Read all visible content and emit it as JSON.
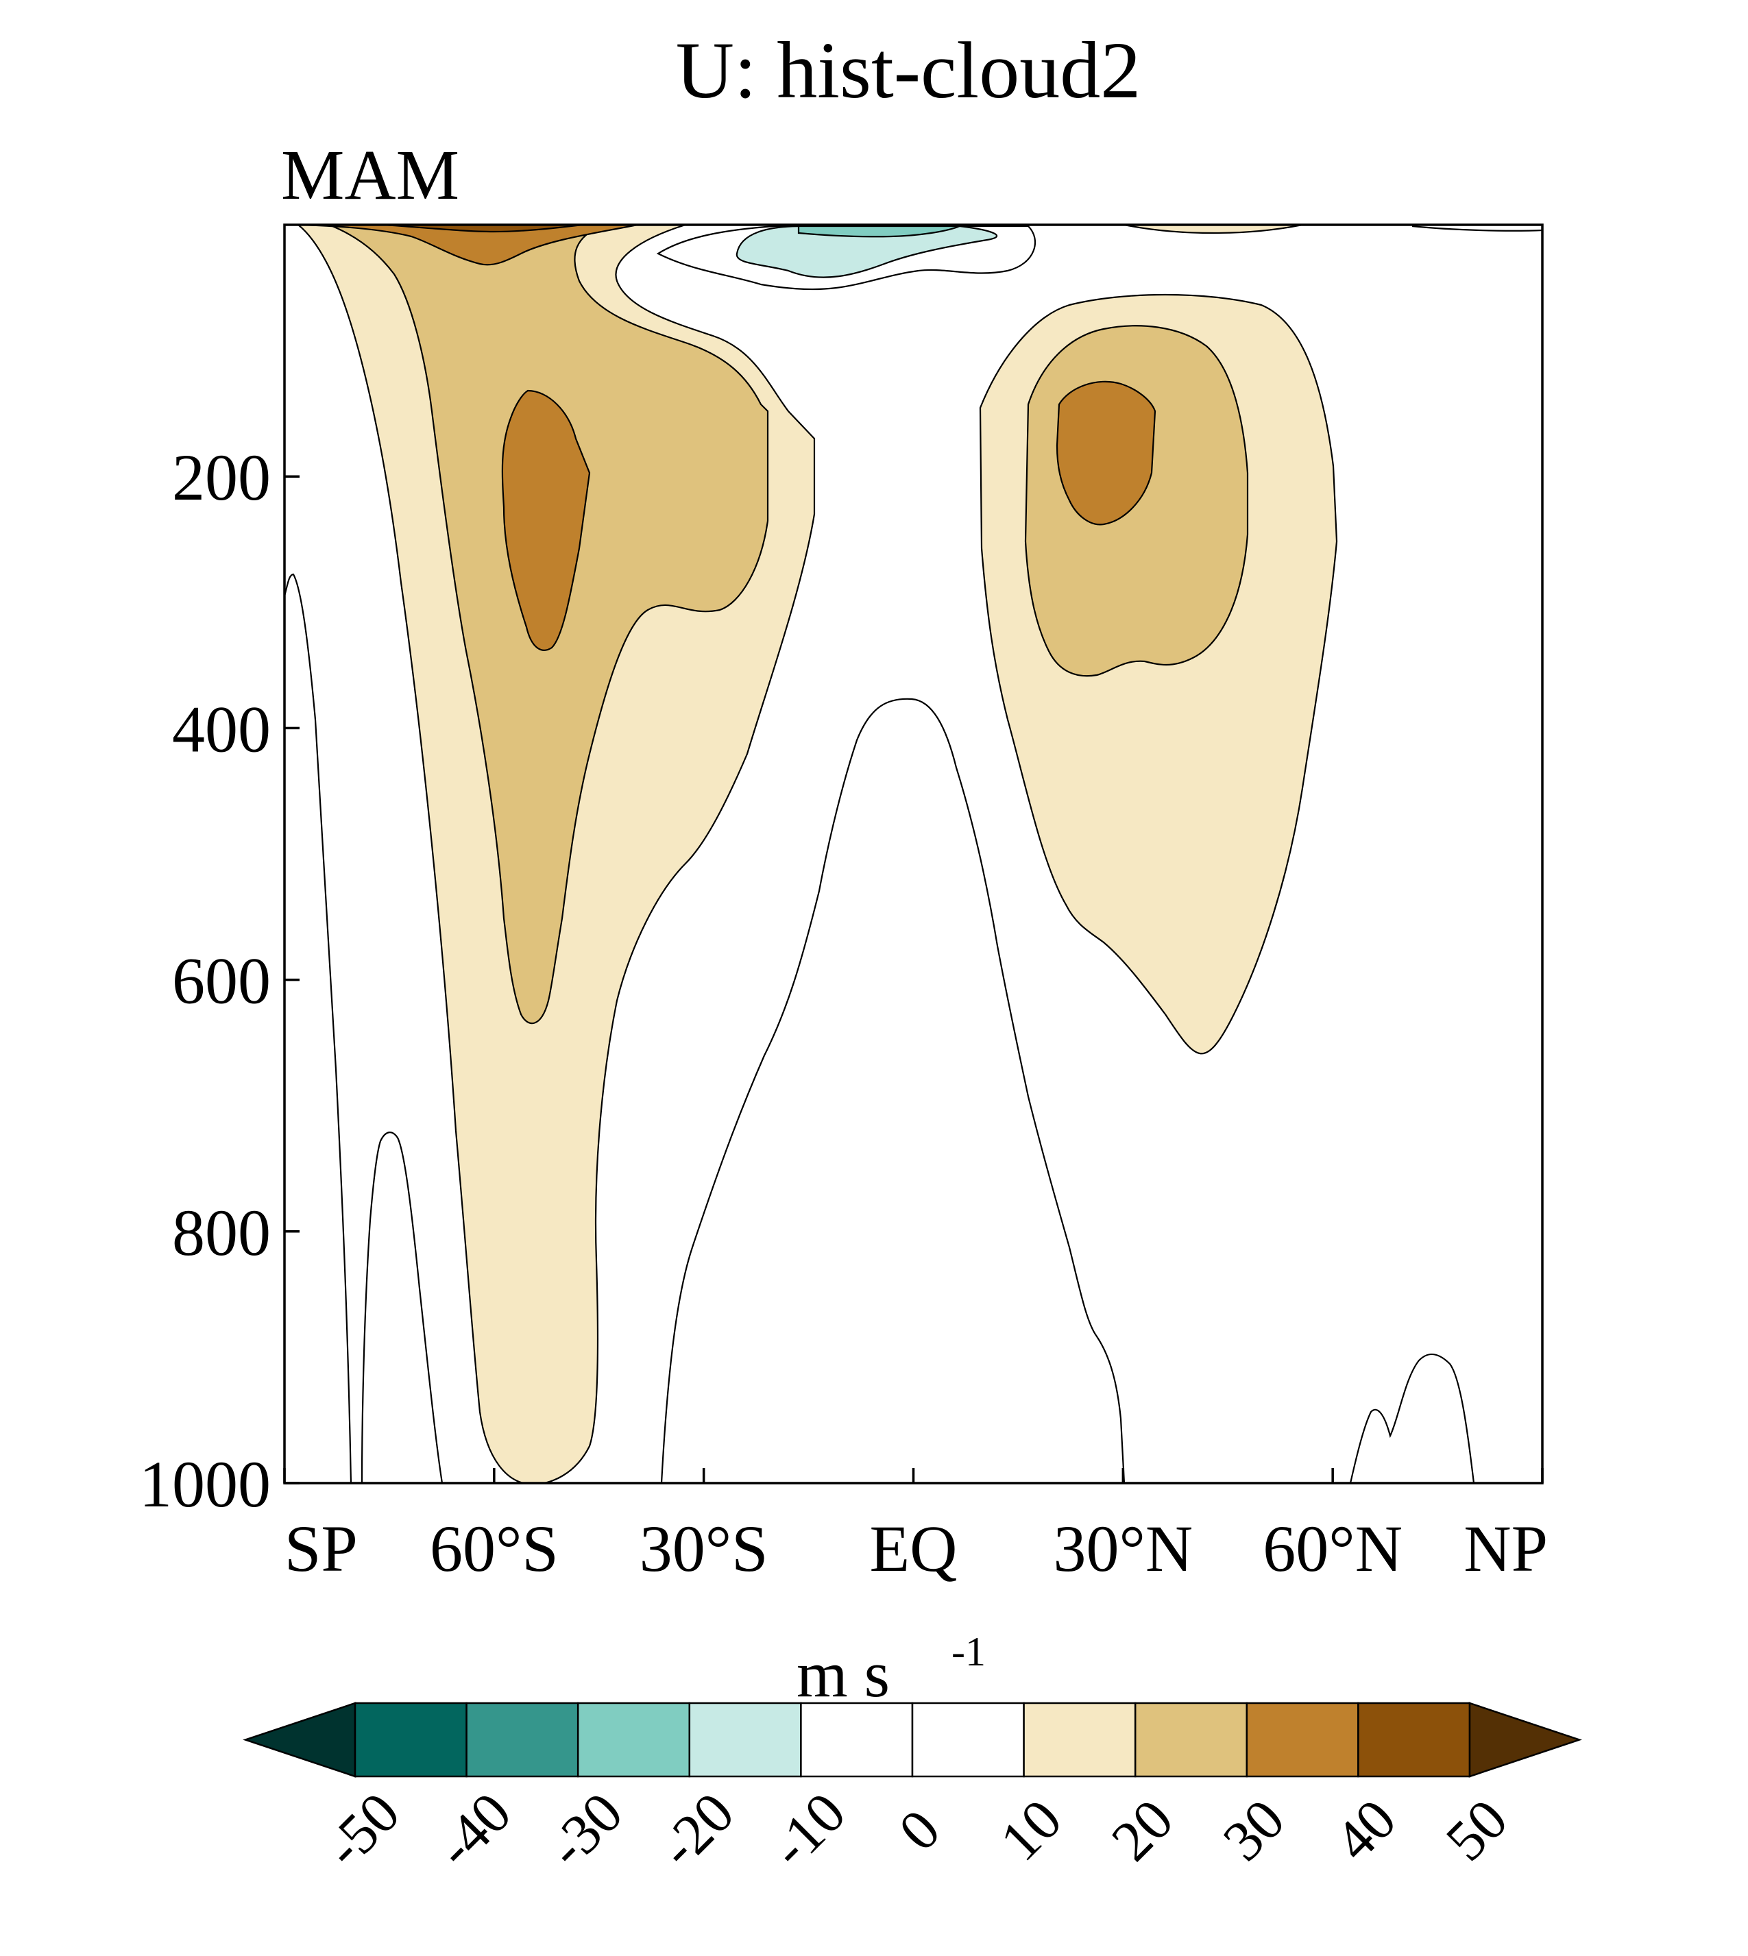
{
  "title": "U: hist-cloud2",
  "subtitle": "MAM",
  "chart_data": {
    "type": "contour",
    "variable": "U",
    "experiment": "hist-cloud2",
    "season": "MAM",
    "units": "m s",
    "units_exponent": "-1",
    "x_ticks": [
      {
        "value": -90,
        "label": "SP"
      },
      {
        "value": -60,
        "label": "60°S"
      },
      {
        "value": -30,
        "label": "30°S"
      },
      {
        "value": 0,
        "label": "EQ"
      },
      {
        "value": 30,
        "label": "30°N"
      },
      {
        "value": 60,
        "label": "60°N"
      },
      {
        "value": 90,
        "label": "NP"
      }
    ],
    "y_ticks": [
      {
        "value": 200,
        "label": "200"
      },
      {
        "value": 400,
        "label": "400"
      },
      {
        "value": 600,
        "label": "600"
      },
      {
        "value": 800,
        "label": "800"
      },
      {
        "value": 1000,
        "label": "1000"
      }
    ],
    "xlim": [
      -90,
      90
    ],
    "ylim": [
      1000,
      0
    ],
    "colorbar": {
      "levels": [
        -50,
        -40,
        -30,
        -20,
        -10,
        0,
        10,
        20,
        30,
        40,
        50
      ],
      "labels": [
        "-50",
        "-40",
        "-30",
        "-20",
        "-10",
        "0",
        "10",
        "20",
        "30",
        "40",
        "50"
      ],
      "colors": [
        "#00332f",
        "#02665e",
        "#35968c",
        "#80cdc1",
        "#c7eae5",
        "#ffffff",
        "#ffffff",
        "#f6e8c3",
        "#dfc27d",
        "#bf812d",
        "#8c510a",
        "#543005"
      ]
    },
    "features": [
      {
        "name": "southern jet core",
        "lat": -50,
        "pressure": 230,
        "max_range": "30-40"
      },
      {
        "name": "northern jet core",
        "lat": 28,
        "pressure": 200,
        "max_range": "30-40"
      },
      {
        "name": "equatorial easterlies",
        "lat": 0,
        "pressure": 20,
        "min_range": "-30 to -20"
      }
    ]
  }
}
